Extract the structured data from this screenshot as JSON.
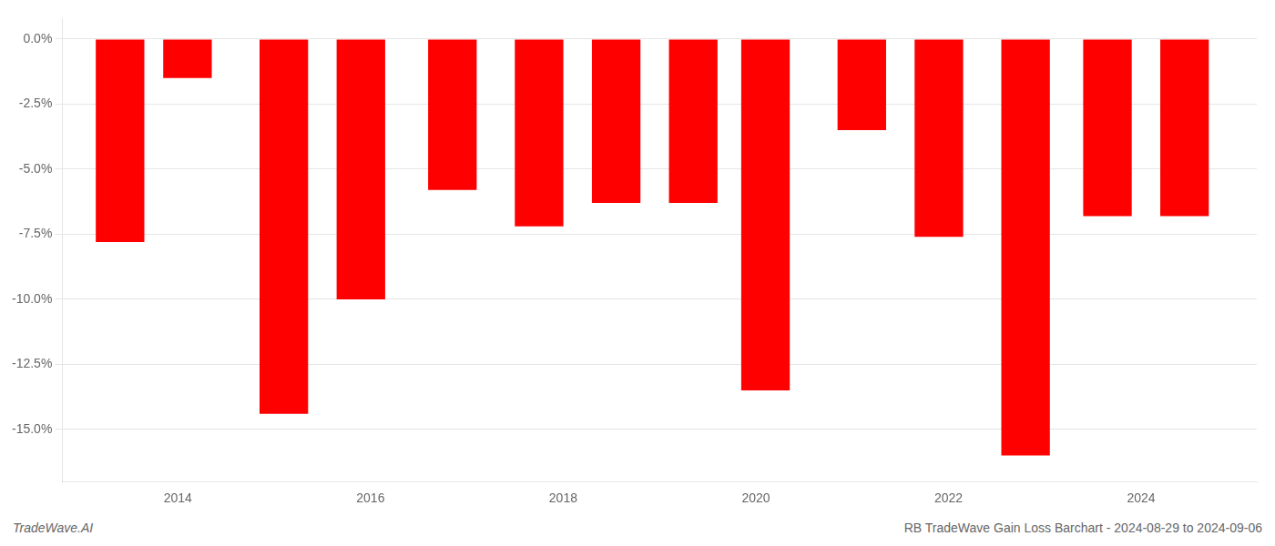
{
  "chart_data": {
    "type": "bar",
    "x": [
      2013.4,
      2014.1,
      2015.1,
      2015.9,
      2016.85,
      2017.75,
      2018.55,
      2019.35,
      2020.1,
      2021.1,
      2021.9,
      2022.8,
      2023.65,
      2024.45
    ],
    "values": [
      -7.8,
      -1.5,
      -14.4,
      -10.0,
      -5.8,
      -7.2,
      -6.3,
      -6.3,
      -13.5,
      -3.5,
      -7.6,
      -16.0,
      -6.8,
      -6.8
    ],
    "color": "#ff0000",
    "xlim": [
      2012.8,
      2025.2
    ],
    "xticks": [
      2014,
      2016,
      2018,
      2020,
      2022,
      2024
    ],
    "ylim": [
      -17.0,
      0.8
    ],
    "yticks": [
      {
        "value": 0.0,
        "label": "0.0%"
      },
      {
        "value": -2.5,
        "label": "-2.5%"
      },
      {
        "value": -5.0,
        "label": "-5.0%"
      },
      {
        "value": -7.5,
        "label": "-7.5%"
      },
      {
        "value": -10.0,
        "label": "-10.0%"
      },
      {
        "value": -12.5,
        "label": "-12.5%"
      },
      {
        "value": -15.0,
        "label": "-15.0%"
      }
    ],
    "grid": true,
    "annotations": [
      "TradeWave.AI",
      "RB TradeWave Gain Loss Barchart - 2024-08-29 to 2024-09-06"
    ]
  }
}
